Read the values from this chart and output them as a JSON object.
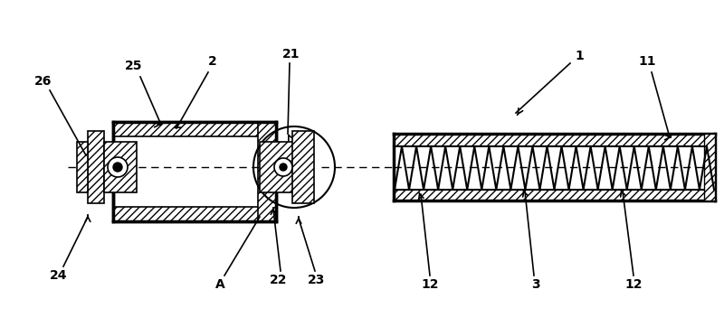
{
  "bg_color": "#ffffff",
  "line_color": "#000000",
  "fig_width": 8.0,
  "fig_height": 3.62,
  "dpi": 100
}
